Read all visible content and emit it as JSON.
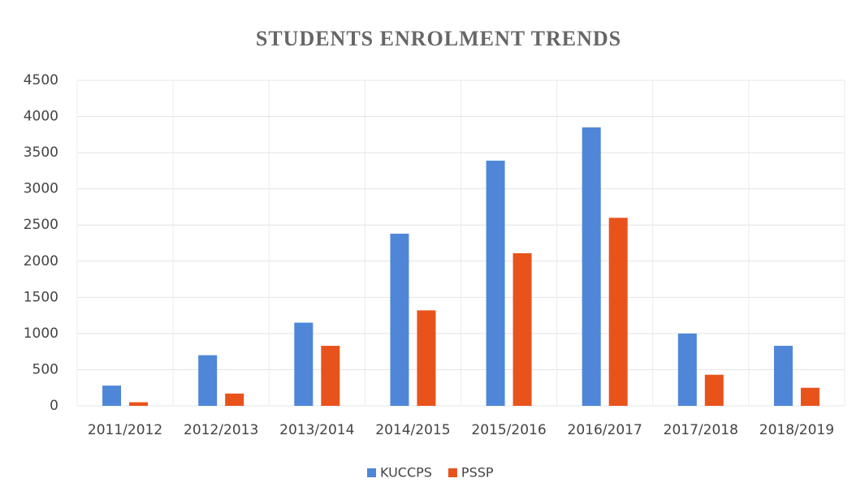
{
  "chart_data": {
    "type": "bar",
    "title": "STUDENTS ENROLMENT TRENDS",
    "categories": [
      "2011/2012",
      "2012/2013",
      "2013/2014",
      "2014/2015",
      "2015/2016",
      "2016/2017",
      "2017/2018",
      "2018/2019"
    ],
    "series": [
      {
        "name": "KUCCPS",
        "color": "#4f86d8",
        "values": [
          280,
          700,
          1150,
          2380,
          3390,
          3850,
          1000,
          830
        ]
      },
      {
        "name": "PSSP",
        "color": "#e8531c",
        "values": [
          50,
          170,
          830,
          1320,
          2110,
          2600,
          430,
          250
        ]
      }
    ],
    "ylim": [
      0,
      4500
    ],
    "yticks": [
      0,
      500,
      1000,
      1500,
      2000,
      2500,
      3000,
      3500,
      4000,
      4500
    ],
    "grid": true,
    "legend": "bottom"
  }
}
